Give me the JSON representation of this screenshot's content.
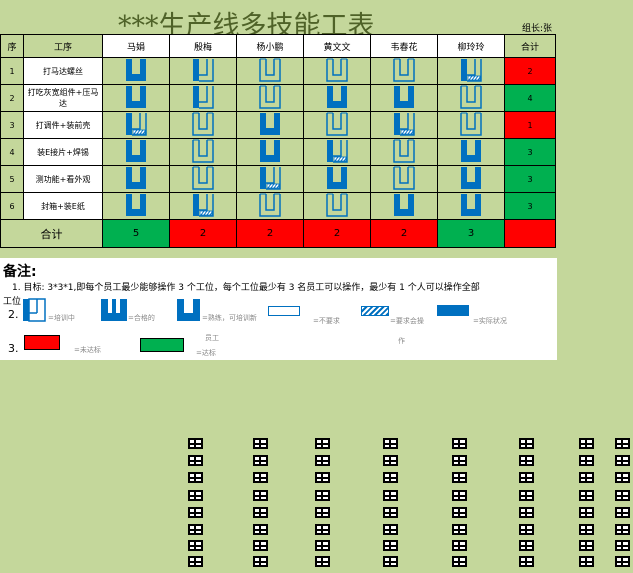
{
  "title": "***生产线多技能工表",
  "leader": "组长:张",
  "headers": {
    "no": "序",
    "process": "工序",
    "total": "合计"
  },
  "workers": [
    "马娟",
    "殷梅",
    "杨小鹏",
    "黄文文",
    "韦春花",
    "柳玲玲"
  ],
  "rows": [
    {
      "no": "1",
      "process": "打马达螺丝",
      "skills": [
        "full",
        "partial",
        "outline",
        "outline",
        "outline",
        "partial-hatch"
      ],
      "total": "2",
      "status": "red"
    },
    {
      "no": "2",
      "process": "打吃灰宽组件+压马达",
      "skills": [
        "full",
        "partial",
        "outline",
        "full",
        "full",
        "outline"
      ],
      "total": "4",
      "status": "green"
    },
    {
      "no": "3",
      "process": "打调件+装前壳",
      "skills": [
        "partial-hatch",
        "outline",
        "full",
        "outline",
        "partial-hatch",
        "outline"
      ],
      "total": "1",
      "status": "red"
    },
    {
      "no": "4",
      "process": "装E接片+焊锡",
      "skills": [
        "full",
        "outline",
        "full",
        "partial-hatch",
        "outline",
        "full"
      ],
      "total": "3",
      "status": "green"
    },
    {
      "no": "5",
      "process": "测功能+看外观",
      "skills": [
        "full",
        "outline",
        "partial-hatch",
        "full",
        "outline",
        "full"
      ],
      "total": "3",
      "status": "green"
    },
    {
      "no": "6",
      "process": "封箱+装E纸",
      "skills": [
        "full",
        "partial-hatch",
        "outline",
        "outline",
        "full",
        "full"
      ],
      "total": "3",
      "status": "green"
    }
  ],
  "totals": {
    "label": "合计",
    "values": [
      "5",
      "2",
      "2",
      "2",
      "2",
      "3"
    ],
    "status": [
      "green",
      "red",
      "red",
      "red",
      "red",
      "green"
    ]
  },
  "notes": {
    "heading": "备注:",
    "line1": "1.    目标: 3*3*1,即每个员工最少能够操作 3 个工位，每个工位最少有 3 名员工可以操作，最少有 1 个人可以操作全部",
    "line1b": "工位",
    "n2": "2.",
    "n3": "3.",
    "legend": [
      "=培训中",
      "=合格的",
      "=熟练，可培训新",
      "员工",
      "=不要求",
      "=要求会操",
      "作",
      "=实际状况",
      "=未达标",
      "=达标"
    ]
  },
  "colors": {
    "blue": "#0070c0",
    "red": "#ff0000",
    "green": "#00b050",
    "bg": "#c4d79b"
  }
}
